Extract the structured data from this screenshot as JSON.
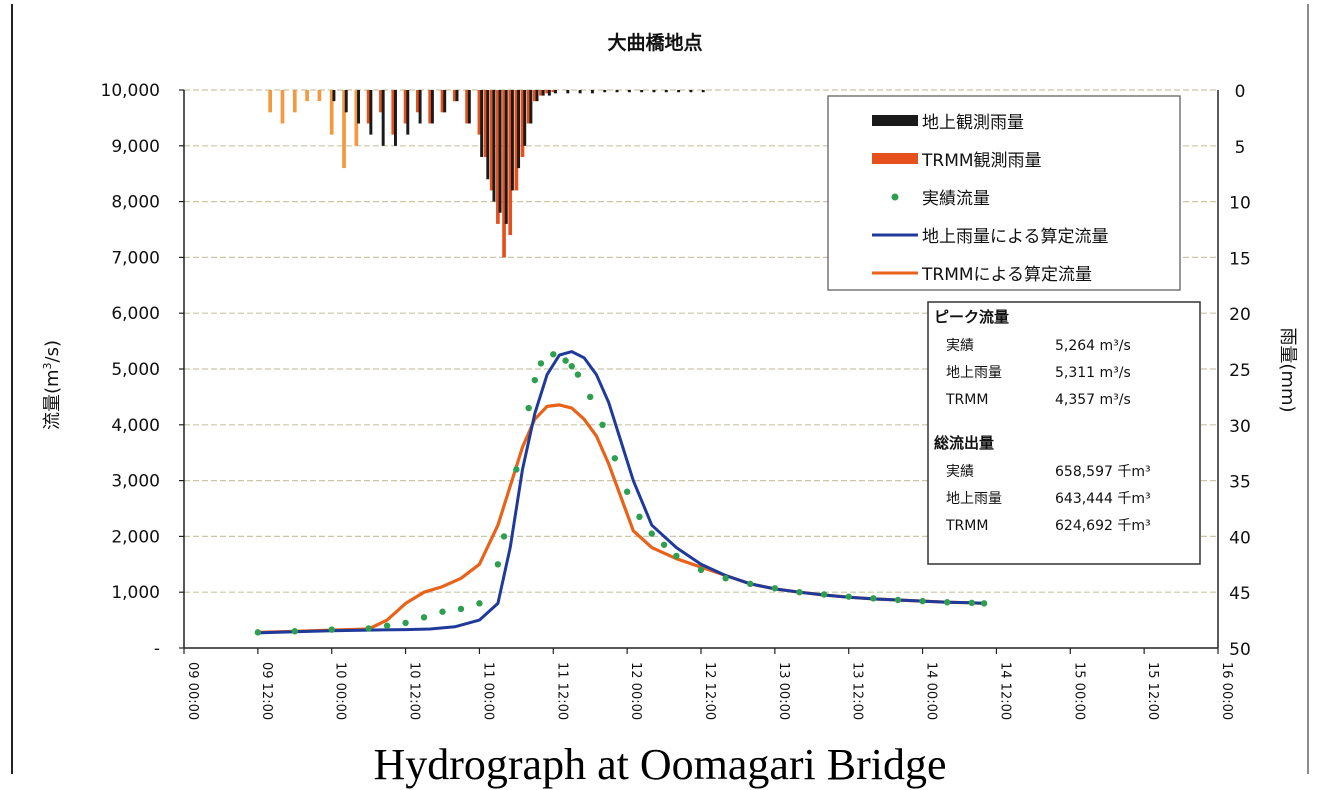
{
  "caption": "Hydrograph at Oomagari Bridge",
  "chart_data": {
    "type": "line",
    "title": "大曲橋地点",
    "ylabel": "流量(m³/s)",
    "ylabel_base": "流量(m",
    "ylabel_sup": "3",
    "ylabel_tail": "/s)",
    "y2label": "雨量(mm)",
    "ylim": [
      0,
      10000
    ],
    "y2lim_inverted": [
      0,
      50
    ],
    "yticks": [
      0,
      1000,
      2000,
      3000,
      4000,
      5000,
      6000,
      7000,
      8000,
      9000,
      10000
    ],
    "ytick_labels": [
      "-",
      "1,000",
      "2,000",
      "3,000",
      "4,000",
      "5,000",
      "6,000",
      "7,000",
      "8,000",
      "9,000",
      "10,000"
    ],
    "y2ticks": [
      0,
      5,
      10,
      15,
      20,
      25,
      30,
      35,
      40,
      45,
      50
    ],
    "y2tick_labels": [
      "0",
      "5",
      "10",
      "15",
      "20",
      "25",
      "30",
      "35",
      "40",
      "45",
      "50"
    ],
    "x_start": 0,
    "x_end": 168,
    "xticks": [
      0,
      12,
      24,
      36,
      48,
      60,
      72,
      84,
      96,
      108,
      120,
      132,
      144,
      156,
      168
    ],
    "xtick_labels": [
      "09 00:00",
      "09 12:00",
      "10 00:00",
      "10 12:00",
      "11 00:00",
      "11 12:00",
      "12 00:00",
      "12 12:00",
      "13 00:00",
      "13 12:00",
      "14 00:00",
      "14 12:00",
      "15 00:00",
      "15 12:00",
      "16 00:00"
    ],
    "grid": true,
    "legend_position": "top-right",
    "colors": {
      "observed_flow": "#2e9e4f",
      "ground_calc": "#1f3a9a",
      "trmm_calc": "#e8621a",
      "ground_rain": "#1a1a1a",
      "trmm_rain": "#e5501c",
      "trmm_rain_light": "#f29a40"
    },
    "series": [
      {
        "name": "実績流量",
        "style": "dots",
        "x": [
          12,
          18,
          24,
          30,
          33,
          36,
          39,
          42,
          45,
          48,
          51,
          52,
          54,
          56,
          57,
          58,
          60,
          62,
          63,
          64,
          66,
          68,
          70,
          72,
          74,
          76,
          78,
          80,
          84,
          88,
          92,
          96,
          100,
          104,
          108,
          112,
          116,
          120,
          124,
          128,
          130
        ],
        "y": [
          280,
          300,
          330,
          350,
          400,
          450,
          550,
          650,
          700,
          800,
          1500,
          2000,
          3200,
          4300,
          4800,
          5100,
          5264,
          5150,
          5050,
          4900,
          4500,
          4000,
          3400,
          2800,
          2350,
          2050,
          1850,
          1650,
          1400,
          1250,
          1150,
          1070,
          1000,
          960,
          920,
          890,
          860,
          840,
          820,
          810,
          800
        ]
      },
      {
        "name": "地上雨量による算定流量",
        "style": "line",
        "x": [
          12,
          18,
          24,
          30,
          36,
          40,
          44,
          48,
          51,
          53,
          55,
          57,
          59,
          61,
          63,
          65,
          67,
          69,
          71,
          73,
          76,
          80,
          84,
          88,
          92,
          96,
          100,
          104,
          108,
          112,
          116,
          120,
          124,
          128,
          130
        ],
        "y": [
          270,
          290,
          310,
          320,
          330,
          340,
          380,
          500,
          800,
          1800,
          3200,
          4200,
          4900,
          5250,
          5311,
          5200,
          4900,
          4400,
          3700,
          3000,
          2200,
          1800,
          1500,
          1300,
          1150,
          1060,
          1000,
          950,
          910,
          880,
          860,
          840,
          820,
          810,
          800
        ]
      },
      {
        "name": "TRMMによる算定流量",
        "style": "line",
        "x": [
          12,
          18,
          24,
          30,
          33,
          36,
          39,
          42,
          45,
          48,
          51,
          53,
          55,
          57,
          59,
          61,
          63,
          65,
          67,
          69,
          71,
          73,
          76,
          80,
          84,
          88,
          92,
          96,
          100,
          104,
          108,
          112,
          116,
          120,
          124,
          128,
          130
        ],
        "y": [
          280,
          300,
          320,
          340,
          500,
          800,
          1000,
          1100,
          1250,
          1500,
          2200,
          2900,
          3600,
          4100,
          4330,
          4357,
          4300,
          4100,
          3800,
          3300,
          2700,
          2100,
          1800,
          1600,
          1450,
          1300,
          1150,
          1060,
          1000,
          950,
          910,
          880,
          860,
          840,
          820,
          810,
          800
        ]
      }
    ],
    "rain_series": [
      {
        "name": "地上観測雨量",
        "x": [
          24,
          26,
          28,
          30,
          32,
          34,
          36,
          38,
          40,
          42,
          44,
          46,
          48,
          49,
          50,
          51,
          52,
          53,
          54,
          55,
          56,
          57,
          58,
          59,
          60,
          62,
          64,
          66,
          68,
          70,
          72,
          74,
          76,
          78,
          80,
          82,
          84
        ],
        "y": [
          1,
          2,
          3,
          4,
          5,
          5,
          4,
          3,
          3,
          2,
          1,
          3,
          6,
          8,
          10,
          11,
          12,
          9,
          7,
          5,
          3,
          1,
          0.5,
          0.5,
          0.3,
          0.3,
          0.3,
          0.3,
          0.2,
          0.2,
          0.2,
          0.2,
          0.2,
          0.2,
          0.2,
          0.2,
          0.2
        ]
      },
      {
        "name": "TRMM観測雨量",
        "x": [
          14,
          16,
          18,
          20,
          22,
          24,
          26,
          28,
          30,
          32,
          34,
          36,
          38,
          40,
          42,
          44,
          46,
          48,
          49,
          50,
          51,
          52,
          53,
          54,
          55,
          56,
          57,
          58,
          59,
          60
        ],
        "y": [
          2,
          3,
          2,
          1,
          1,
          4,
          7,
          5,
          3,
          2,
          4,
          3,
          2,
          3,
          2,
          1,
          3,
          4,
          6,
          9,
          12,
          15,
          13,
          9,
          6,
          3,
          1,
          0.5,
          0.3,
          0.2
        ]
      }
    ],
    "legend": [
      {
        "label": "地上観測雨量",
        "kind": "bar",
        "color": "#1a1a1a"
      },
      {
        "label": "TRMM観測雨量",
        "kind": "bar",
        "color": "#e5501c"
      },
      {
        "label": "実績流量",
        "kind": "dot",
        "color": "#2e9e4f"
      },
      {
        "label": "地上雨量による算定流量",
        "kind": "line",
        "color": "#1f3a9a"
      },
      {
        "label": "TRMMによる算定流量",
        "kind": "line",
        "color": "#e8621a"
      }
    ],
    "annotation": {
      "peak_title": "ピーク流量",
      "peak_rows": [
        {
          "name": "実績",
          "value": "5,264 m³/s"
        },
        {
          "name": "地上雨量",
          "value": "5,311 m³/s"
        },
        {
          "name": "TRMM",
          "value": "4,357 m³/s"
        }
      ],
      "total_title": "総流出量",
      "total_rows": [
        {
          "name": "実績",
          "value": "658,597 千m³"
        },
        {
          "name": "地上雨量",
          "value": "643,444 千m³"
        },
        {
          "name": "TRMM",
          "value": "624,692 千m³"
        }
      ]
    }
  }
}
